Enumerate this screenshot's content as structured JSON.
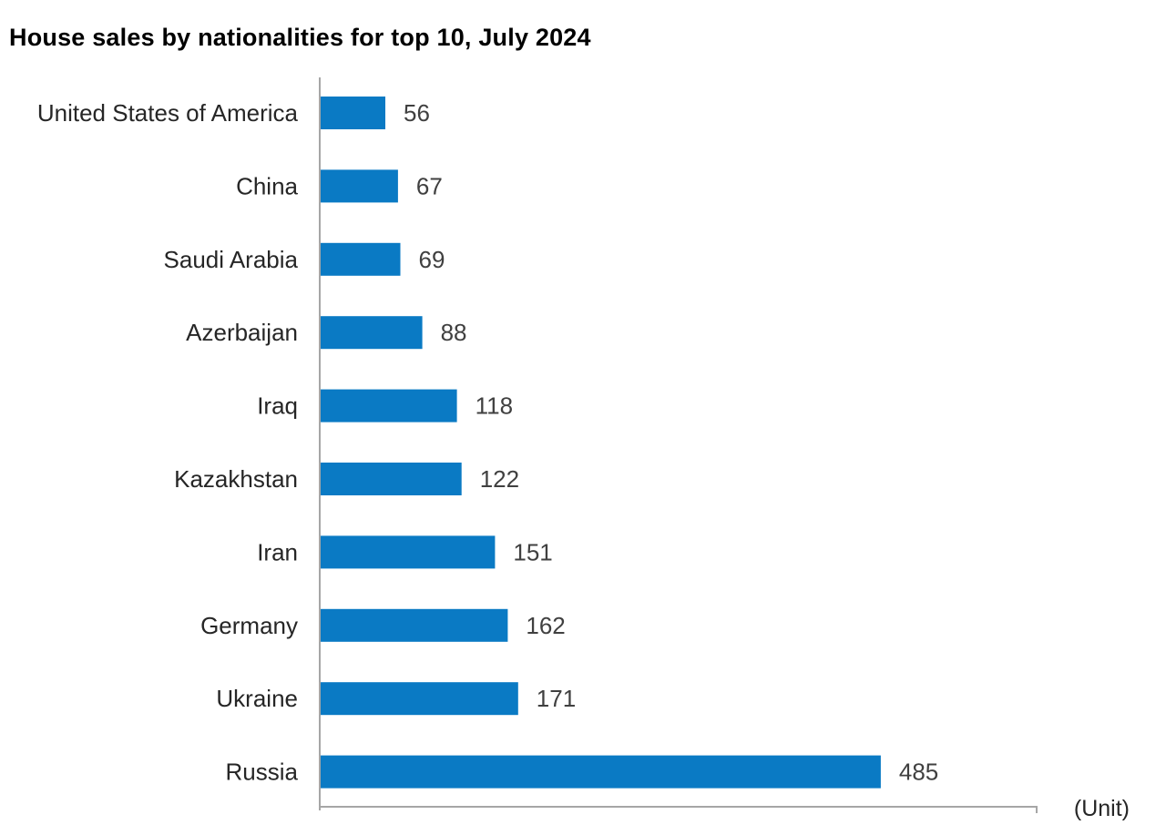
{
  "chart_data": {
    "type": "bar",
    "orientation": "horizontal",
    "title": "House sales by nationalities for top 10, July 2024",
    "unit_label": "(Unit)",
    "xlabel": "",
    "ylabel": "",
    "xlim": [
      0,
      620
    ],
    "grid": false,
    "legend": "none",
    "bar_color": "#0a7ac4",
    "categories": [
      "United States of America",
      "China",
      "Saudi Arabia",
      "Azerbaijan",
      "Iraq",
      "Kazakhstan",
      "Iran",
      "Germany",
      "Ukraine",
      "Russia"
    ],
    "values": [
      56,
      67,
      69,
      88,
      118,
      122,
      151,
      162,
      171,
      485
    ]
  }
}
